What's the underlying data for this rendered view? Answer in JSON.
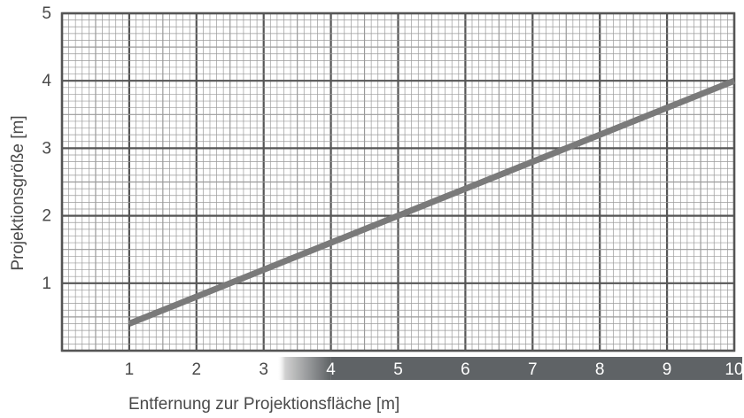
{
  "chart_data": {
    "type": "line",
    "title": "",
    "xlabel": "Entfernung zur Projektionsfläche [m]",
    "ylabel": "Projektionsgröße [m]",
    "xlim": [
      0,
      10
    ],
    "ylim": [
      0,
      5
    ],
    "x_ticks": [
      "1",
      "2",
      "3",
      "4",
      "5",
      "6",
      "7",
      "8",
      "9",
      "10"
    ],
    "y_ticks": [
      "1",
      "2",
      "3",
      "4",
      "5"
    ],
    "grid": true,
    "legend": "none",
    "series": [
      {
        "x": [
          1,
          10
        ],
        "y": [
          0.4,
          4.0
        ]
      }
    ],
    "colors": {
      "line": "#7a7a7a",
      "grid_major": "#555555",
      "grid_minor": "#9a9a9a",
      "range_band": "#5f6366",
      "text": "#4a4a4a"
    }
  }
}
